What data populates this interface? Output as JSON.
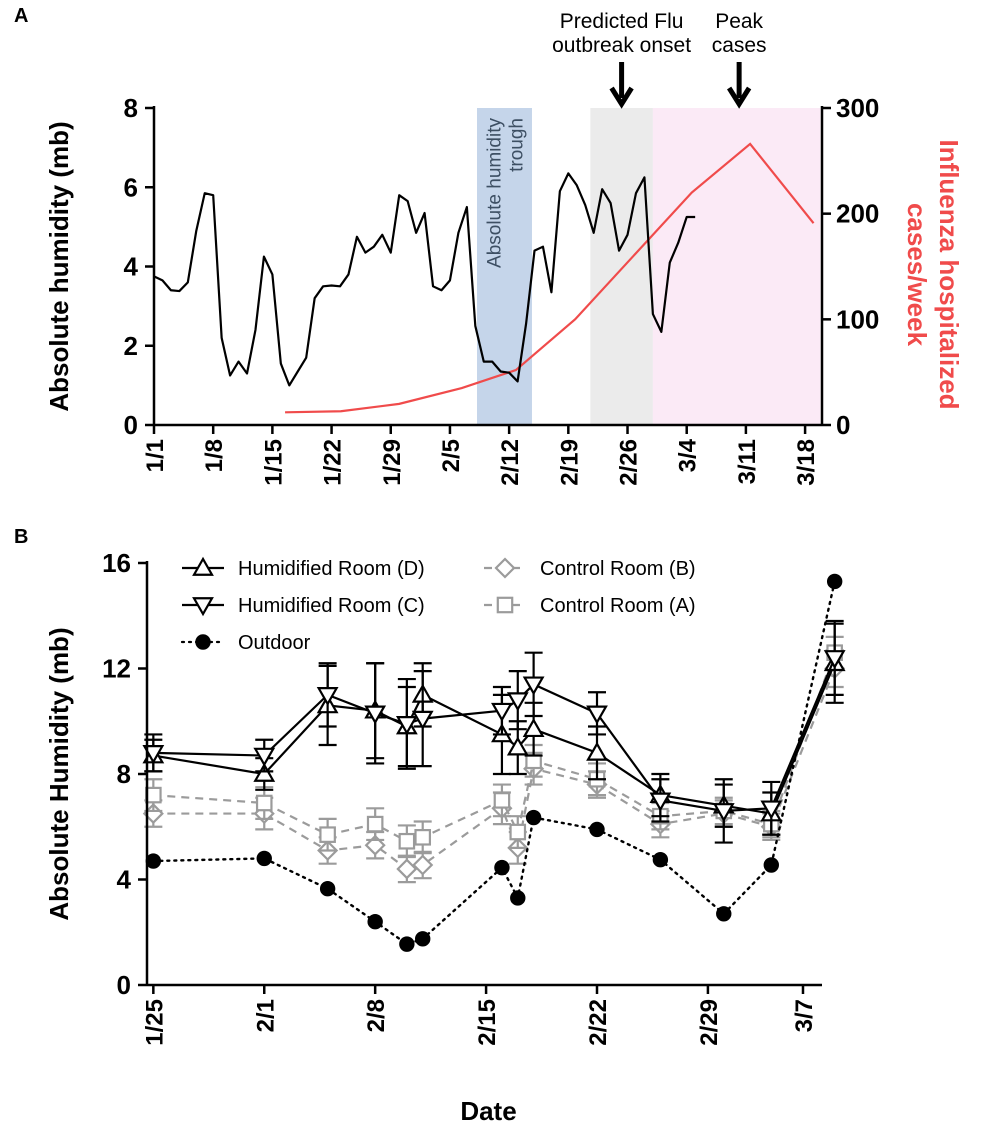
{
  "chart_data": [
    {
      "panel": "A",
      "type": "line",
      "ylabel": "Absolute humidity (mb)",
      "y2label_lines": [
        "Influenza hospitalized",
        "cases/week"
      ],
      "ylim": [
        0,
        8
      ],
      "yticks": [
        0,
        2,
        4,
        6,
        8
      ],
      "y2lim": [
        0,
        300
      ],
      "y2ticks": [
        0,
        100,
        200,
        300
      ],
      "xlim": [
        1,
        80
      ],
      "xticks": [
        {
          "day": 1,
          "label": "1/1"
        },
        {
          "day": 8,
          "label": "1/8"
        },
        {
          "day": 15,
          "label": "1/15"
        },
        {
          "day": 22,
          "label": "1/22"
        },
        {
          "day": 29,
          "label": "1/29"
        },
        {
          "day": 36,
          "label": "2/5"
        },
        {
          "day": 43,
          "label": "2/12"
        },
        {
          "day": 50,
          "label": "2/19"
        },
        {
          "day": 57,
          "label": "2/26"
        },
        {
          "day": 64,
          "label": "3/4"
        },
        {
          "day": 71,
          "label": "3/11"
        },
        {
          "day": 78,
          "label": "3/18"
        }
      ],
      "bands": [
        {
          "name": "humidity-trough",
          "label_lines": [
            "Absolute humidity",
            "trough"
          ],
          "x0": 39.2,
          "x1": 45.7,
          "color": "#c5d5ea"
        },
        {
          "name": "onset-band",
          "x0": 52.6,
          "x1": 60.0,
          "color": "#ebebeb"
        },
        {
          "name": "peak-band",
          "x0": 60.0,
          "x1": 79.8,
          "color": "#fbeaf6"
        }
      ],
      "annotations": [
        {
          "name": "onset",
          "lines": [
            "Predicted Flu",
            "outbreak onset"
          ],
          "x": 56.3
        },
        {
          "name": "peak",
          "lines": [
            "Peak",
            "cases"
          ],
          "x": 70.2
        }
      ],
      "humidity_series": {
        "color": "#000000",
        "x": [
          1,
          2,
          3,
          4,
          5,
          6,
          7,
          8,
          9,
          10,
          11,
          12,
          13,
          14,
          15,
          16,
          17,
          18,
          19,
          20,
          21,
          22,
          23,
          24,
          25,
          26,
          27,
          28,
          29,
          30,
          31,
          32,
          33,
          34,
          35,
          36,
          37,
          38,
          39,
          40,
          41,
          42,
          43,
          44,
          45,
          46,
          47,
          48,
          49,
          50,
          51,
          52,
          53,
          54,
          55,
          56,
          57,
          58,
          59,
          60,
          61,
          62,
          63,
          64,
          65
        ],
        "y": [
          3.75,
          3.65,
          3.4,
          3.38,
          3.6,
          4.9,
          5.85,
          5.8,
          2.2,
          1.25,
          1.6,
          1.3,
          2.4,
          4.25,
          3.8,
          1.55,
          1.0,
          1.35,
          1.7,
          3.2,
          3.5,
          3.52,
          3.5,
          3.8,
          4.75,
          4.35,
          4.5,
          4.8,
          4.35,
          5.8,
          5.65,
          4.85,
          5.35,
          3.5,
          3.4,
          3.65,
          4.85,
          5.5,
          2.5,
          1.6,
          1.6,
          1.35,
          1.32,
          1.1,
          2.55,
          4.4,
          4.5,
          3.35,
          5.9,
          6.35,
          6.05,
          5.55,
          4.85,
          5.95,
          5.6,
          4.4,
          4.8,
          5.85,
          6.25,
          2.8,
          2.35,
          4.1,
          4.6,
          5.25,
          5.25
        ]
      },
      "cases_series": {
        "color": "#f04b4b",
        "x": [
          16.5,
          23.1,
          30.0,
          37.4,
          43.8,
          50.8,
          57.7,
          64.6,
          71.5,
          79.0
        ],
        "y": [
          12,
          13,
          20,
          35,
          52,
          100,
          160,
          220,
          266,
          191
        ]
      }
    },
    {
      "panel": "B",
      "type": "line",
      "ylabel": "Absolute Humidity (mb)",
      "xlabel": "Date",
      "ylim": [
        0,
        16
      ],
      "yticks": [
        0,
        4,
        8,
        12,
        16
      ],
      "xlim": [
        0.6,
        43.2
      ],
      "xticks": [
        {
          "day": 1,
          "label": "1/25"
        },
        {
          "day": 8,
          "label": "2/1"
        },
        {
          "day": 15,
          "label": "2/8"
        },
        {
          "day": 22,
          "label": "2/15"
        },
        {
          "day": 29,
          "label": "2/22"
        },
        {
          "day": 36,
          "label": "2/29"
        },
        {
          "day": 42,
          "label": "3/7"
        }
      ],
      "legend": [
        {
          "series": 0,
          "label": "Humidified Room (D)"
        },
        {
          "series": 1,
          "label": "Humidified Room (C)"
        },
        {
          "series": 2,
          "label": "Outdoor"
        },
        {
          "series": 3,
          "label": "Control Room (B)"
        },
        {
          "series": 4,
          "label": "Control Room (A)"
        }
      ],
      "series": [
        {
          "name": "Humidified Room (D)",
          "marker": "triangle-up",
          "line": "solid",
          "color": "#000000",
          "x": [
            1,
            8,
            12,
            15,
            17,
            18,
            23,
            24,
            25,
            29,
            33,
            37,
            40,
            44
          ],
          "y": [
            8.7,
            8.0,
            10.6,
            10.4,
            9.8,
            11.0,
            9.5,
            9.0,
            9.7,
            8.8,
            7.2,
            6.8,
            6.5,
            12.2
          ],
          "err": [
            0.6,
            0.6,
            1.5,
            1.8,
            1.5,
            1.2,
            1.5,
            1.0,
            1.0,
            1.0,
            0.8,
            0.8,
            0.8,
            1.5
          ]
        },
        {
          "name": "Humidified Room (C)",
          "marker": "triangle-down",
          "line": "solid",
          "color": "#000000",
          "x": [
            1,
            8,
            12,
            15,
            17,
            18,
            23,
            24,
            25,
            29,
            33,
            37,
            40,
            44
          ],
          "y": [
            8.8,
            8.7,
            11.0,
            10.3,
            9.9,
            10.1,
            10.4,
            10.8,
            11.4,
            10.3,
            7.0,
            6.6,
            6.7,
            12.4
          ],
          "err": [
            0.7,
            0.6,
            1.2,
            1.9,
            1.7,
            1.8,
            0.9,
            1.1,
            1.2,
            0.8,
            0.8,
            1.2,
            1.0,
            1.4
          ]
        },
        {
          "name": "Outdoor",
          "marker": "circle",
          "line": "dotted",
          "color": "#000000",
          "x": [
            1,
            8,
            12,
            15,
            17,
            18,
            23,
            24,
            25,
            29,
            33,
            37,
            40,
            44
          ],
          "y": [
            4.7,
            4.8,
            3.65,
            2.4,
            1.55,
            1.75,
            4.45,
            3.3,
            6.35,
            5.9,
            4.75,
            2.7,
            4.55,
            15.3
          ],
          "err": []
        },
        {
          "name": "Control Room (B)",
          "marker": "diamond",
          "line": "dashed",
          "color": "#9b9b9b",
          "x": [
            1,
            8,
            12,
            15,
            17,
            18,
            23,
            24,
            25,
            29,
            33,
            37,
            40,
            44
          ],
          "y": [
            6.5,
            6.5,
            5.1,
            5.3,
            4.4,
            4.55,
            6.7,
            5.2,
            8.2,
            7.6,
            6.1,
            6.5,
            6.0,
            12.0
          ],
          "err": [
            0.5,
            0.6,
            0.5,
            0.5,
            0.5,
            0.5,
            0.6,
            0.6,
            0.6,
            0.5,
            0.5,
            0.5,
            0.5,
            0.7
          ]
        },
        {
          "name": "Control Room (A)",
          "marker": "square",
          "line": "dashed",
          "color": "#9b9b9b",
          "x": [
            1,
            8,
            12,
            15,
            17,
            18,
            23,
            24,
            25,
            29,
            33,
            37,
            40,
            44
          ],
          "y": [
            7.2,
            6.9,
            5.7,
            6.1,
            5.45,
            5.6,
            7.0,
            5.8,
            8.5,
            7.8,
            6.4,
            6.6,
            6.1,
            12.6
          ],
          "err": [
            0.6,
            0.6,
            0.6,
            0.6,
            0.6,
            0.6,
            0.6,
            0.6,
            0.6,
            0.6,
            0.5,
            0.5,
            0.5,
            0.6
          ]
        }
      ]
    }
  ],
  "panel_labels": {
    "a": "A",
    "b": "B"
  },
  "colors": {
    "axis": "#000000",
    "humidity_line": "#000000",
    "cases_line": "#f04b4b",
    "y2_label": "#f04b4b",
    "control_gray": "#9b9b9b"
  }
}
